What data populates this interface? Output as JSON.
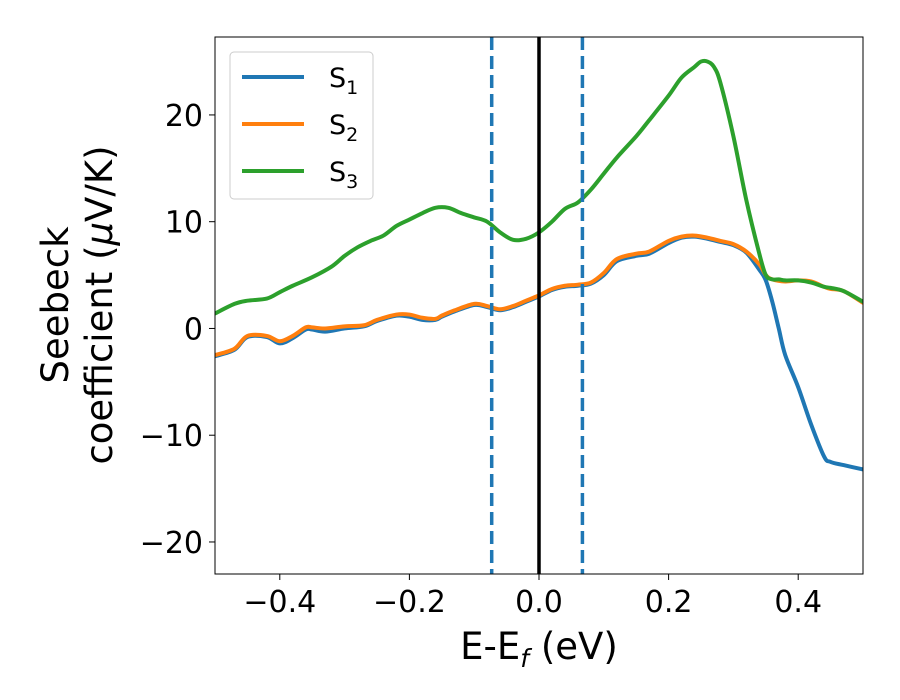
{
  "chart_data": {
    "type": "line",
    "title": "",
    "xlabel": {
      "base": "E-E",
      "sub": "f",
      "rest": " (eV)"
    },
    "ylabel": {
      "line1": "Seebeck",
      "line2a": "coefficient  (",
      "mu": "μ",
      "line2b": "V/K)"
    },
    "xlim": [
      -0.5,
      0.5
    ],
    "ylim": [
      -23,
      27.3
    ],
    "xticks": [
      -0.4,
      -0.2,
      0.0,
      0.2,
      0.4
    ],
    "xtick_labels": [
      "−0.4",
      "−0.2",
      "0.0",
      "0.2",
      "0.4"
    ],
    "yticks": [
      -20,
      -10,
      0,
      10,
      20
    ],
    "ytick_labels": [
      "−20",
      "−10",
      "0",
      "10",
      "20"
    ],
    "legend_position": "top-left",
    "vlines": [
      {
        "x": -0.073,
        "style": "dashed",
        "color": "#1f77b4"
      },
      {
        "x": 0.0,
        "style": "solid",
        "color": "#000000"
      },
      {
        "x": 0.067,
        "style": "dashed",
        "color": "#1f77b4"
      }
    ],
    "series": [
      {
        "name": "S",
        "sub": "1",
        "color": "#1f77b4",
        "x": [
          -0.5,
          -0.47,
          -0.45,
          -0.42,
          -0.4,
          -0.38,
          -0.36,
          -0.35,
          -0.33,
          -0.3,
          -0.27,
          -0.25,
          -0.22,
          -0.2,
          -0.18,
          -0.16,
          -0.15,
          -0.13,
          -0.1,
          -0.08,
          -0.06,
          -0.04,
          -0.02,
          0.0,
          0.02,
          0.04,
          0.06,
          0.08,
          0.1,
          0.12,
          0.15,
          0.17,
          0.2,
          0.22,
          0.24,
          0.26,
          0.28,
          0.3,
          0.32,
          0.34,
          0.35,
          0.36,
          0.37,
          0.38,
          0.4,
          0.42,
          0.44,
          0.45,
          0.47,
          0.5
        ],
        "values": [
          -2.6,
          -2.0,
          -0.8,
          -0.8,
          -1.4,
          -0.9,
          -0.1,
          -0.1,
          -0.3,
          0.0,
          0.2,
          0.7,
          1.2,
          1.1,
          0.8,
          0.8,
          1.1,
          1.6,
          2.2,
          2.0,
          1.7,
          2.0,
          2.5,
          3.0,
          3.6,
          3.9,
          4.0,
          4.2,
          5.0,
          6.3,
          6.8,
          7.0,
          8.0,
          8.5,
          8.6,
          8.4,
          8.1,
          7.8,
          7.1,
          5.5,
          4.5,
          2.5,
          0.0,
          -2.5,
          -5.5,
          -9.0,
          -12.0,
          -12.5,
          -12.8,
          -13.2
        ]
      },
      {
        "name": "S",
        "sub": "2",
        "color": "#ff7f0e",
        "x": [
          -0.5,
          -0.47,
          -0.45,
          -0.42,
          -0.4,
          -0.38,
          -0.36,
          -0.35,
          -0.33,
          -0.3,
          -0.27,
          -0.25,
          -0.22,
          -0.2,
          -0.18,
          -0.16,
          -0.15,
          -0.13,
          -0.1,
          -0.08,
          -0.06,
          -0.04,
          -0.02,
          0.0,
          0.02,
          0.04,
          0.06,
          0.08,
          0.1,
          0.12,
          0.15,
          0.17,
          0.2,
          0.22,
          0.24,
          0.26,
          0.28,
          0.3,
          0.32,
          0.34,
          0.35,
          0.36,
          0.38,
          0.4,
          0.42,
          0.44,
          0.45,
          0.47,
          0.5
        ],
        "values": [
          -2.5,
          -1.9,
          -0.7,
          -0.7,
          -1.2,
          -0.7,
          0.1,
          0.1,
          0.0,
          0.2,
          0.3,
          0.8,
          1.3,
          1.3,
          1.0,
          0.9,
          1.2,
          1.7,
          2.3,
          2.1,
          1.8,
          2.1,
          2.6,
          3.1,
          3.7,
          4.0,
          4.1,
          4.3,
          5.2,
          6.5,
          7.0,
          7.2,
          8.2,
          8.6,
          8.7,
          8.5,
          8.2,
          7.9,
          7.2,
          6.0,
          5.0,
          4.6,
          4.4,
          4.5,
          4.4,
          3.9,
          3.7,
          3.5,
          2.4
        ]
      },
      {
        "name": "S",
        "sub": "3",
        "color": "#2ca02c",
        "x": [
          -0.5,
          -0.47,
          -0.45,
          -0.42,
          -0.4,
          -0.38,
          -0.35,
          -0.32,
          -0.3,
          -0.28,
          -0.26,
          -0.24,
          -0.22,
          -0.2,
          -0.18,
          -0.16,
          -0.14,
          -0.12,
          -0.1,
          -0.08,
          -0.06,
          -0.04,
          -0.02,
          0.0,
          0.02,
          0.04,
          0.06,
          0.08,
          0.1,
          0.12,
          0.15,
          0.17,
          0.2,
          0.22,
          0.24,
          0.25,
          0.26,
          0.27,
          0.28,
          0.3,
          0.32,
          0.34,
          0.35,
          0.36,
          0.37,
          0.38,
          0.4,
          0.42,
          0.44,
          0.45,
          0.47,
          0.5
        ],
        "values": [
          1.4,
          2.3,
          2.6,
          2.8,
          3.4,
          4.0,
          4.8,
          5.8,
          6.8,
          7.6,
          8.2,
          8.7,
          9.6,
          10.2,
          10.8,
          11.3,
          11.3,
          10.8,
          10.4,
          10.0,
          9.0,
          8.3,
          8.4,
          9.0,
          10.0,
          11.2,
          11.8,
          13.0,
          14.5,
          16.0,
          18.0,
          19.5,
          21.8,
          23.5,
          24.5,
          25.0,
          25.0,
          24.5,
          23.0,
          18.0,
          12.0,
          7.0,
          5.0,
          4.6,
          4.6,
          4.5,
          4.5,
          4.3,
          3.9,
          3.8,
          3.5,
          2.5
        ]
      }
    ]
  }
}
